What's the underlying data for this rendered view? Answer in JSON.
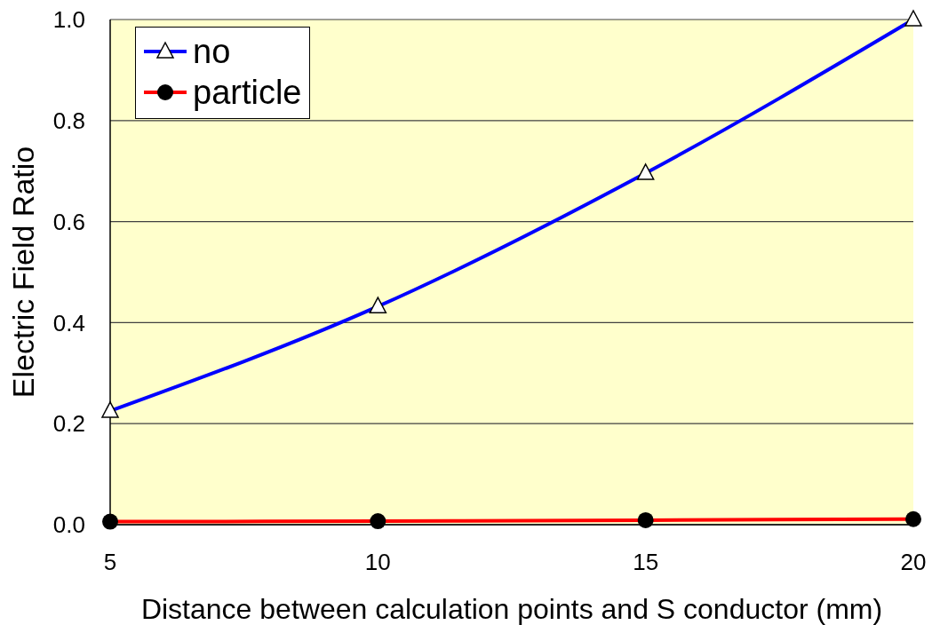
{
  "chart_data": {
    "type": "line",
    "xlabel": "Distance between calculation points and S conductor (mm)",
    "ylabel": "Electric Field Ratio",
    "x": [
      5,
      10,
      15,
      20
    ],
    "series": [
      {
        "name": "no",
        "color": "#0000ff",
        "marker": "triangle",
        "values": [
          0.225,
          0.432,
          0.696,
          1.0
        ]
      },
      {
        "name": "particle",
        "color": "#ff0000",
        "marker": "circle",
        "values": [
          0.006,
          0.007,
          0.009,
          0.011
        ]
      }
    ],
    "xlim": [
      5,
      20
    ],
    "xticks": [
      5,
      10,
      15,
      20
    ],
    "ylim": [
      0,
      1
    ],
    "yticks": [
      {
        "value": 0,
        "label": "0.0"
      },
      {
        "value": 0.2,
        "label": "0.2"
      },
      {
        "value": 0.4,
        "label": "0.4"
      },
      {
        "value": 0.6,
        "label": "0.6"
      },
      {
        "value": 0.8,
        "label": "0.8"
      },
      {
        "value": 1,
        "label": "1.0"
      }
    ],
    "grid": "y",
    "legend": "top left",
    "line_style": "solid"
  }
}
